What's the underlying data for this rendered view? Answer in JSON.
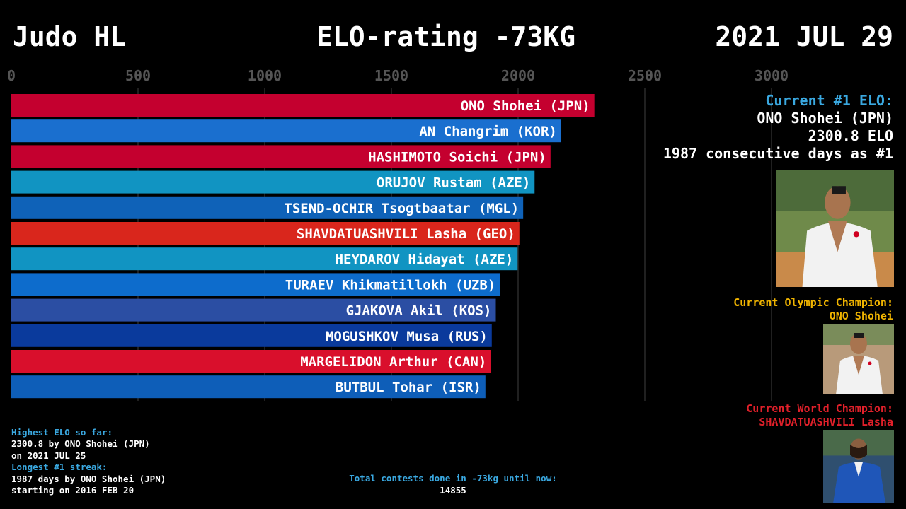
{
  "header": {
    "left": "Judo HL",
    "center": "ELO-rating -73KG",
    "right": "2021 JUL 29"
  },
  "chart_data": {
    "type": "bar",
    "orientation": "horizontal",
    "xlim": [
      0,
      3000
    ],
    "x_ticks": [
      0,
      500,
      1000,
      1500,
      2000,
      2500,
      3000
    ],
    "categories": [
      "ONO Shohei (JPN)",
      "AN Changrim (KOR)",
      "HASHIMOTO Soichi (JPN)",
      "ORUJOV Rustam (AZE)",
      "TSEND-OCHIR Tsogtbaatar (MGL)",
      "SHAVDATUASHVILI Lasha (GEO)",
      "HEYDAROV Hidayat (AZE)",
      "TURAEV Khikmatillokh (UZB)",
      "GJAKOVA Akil (KOS)",
      "MOGUSHKOV Musa (RUS)",
      "MARGELIDON Arthur (CAN)",
      "BUTBUL Tohar (ISR)"
    ],
    "values": [
      2300.8,
      2170,
      2128,
      2065,
      2020,
      2005,
      1998,
      1928,
      1912,
      1896,
      1892,
      1871
    ],
    "colors": [
      "#c4002f",
      "#1a6fcf",
      "#c4002f",
      "#1194c2",
      "#0f62b8",
      "#d9261c",
      "#1194c2",
      "#0d6ccc",
      "#2b4ea3",
      "#0a3a9c",
      "#d90f2c",
      "#0e5eb8"
    ],
    "grid": true
  },
  "leader": {
    "title": "Current #1 ELO:",
    "name": "ONO Shohei (JPN)",
    "elo": "2300.8 ELO",
    "streak": "1987 consecutive days as #1"
  },
  "olympic": {
    "title": "Current Olympic Champion:",
    "name": "ONO Shohei"
  },
  "world": {
    "title": "Current World Champion:",
    "name": "SHAVDATUASHVILI Lasha"
  },
  "stats": {
    "highest_label": "Highest ELO so far:",
    "highest_line1": "2300.8 by ONO Shohei (JPN)",
    "highest_line2": "on 2021 JUL 25",
    "streak_label": "Longest #1 streak:",
    "streak_line1": "1987 days by ONO Shohei (JPN)",
    "streak_line2": "starting on 2016 FEB 20"
  },
  "total": {
    "label": "Total contests done in -73kg until now:",
    "value": "14855"
  }
}
